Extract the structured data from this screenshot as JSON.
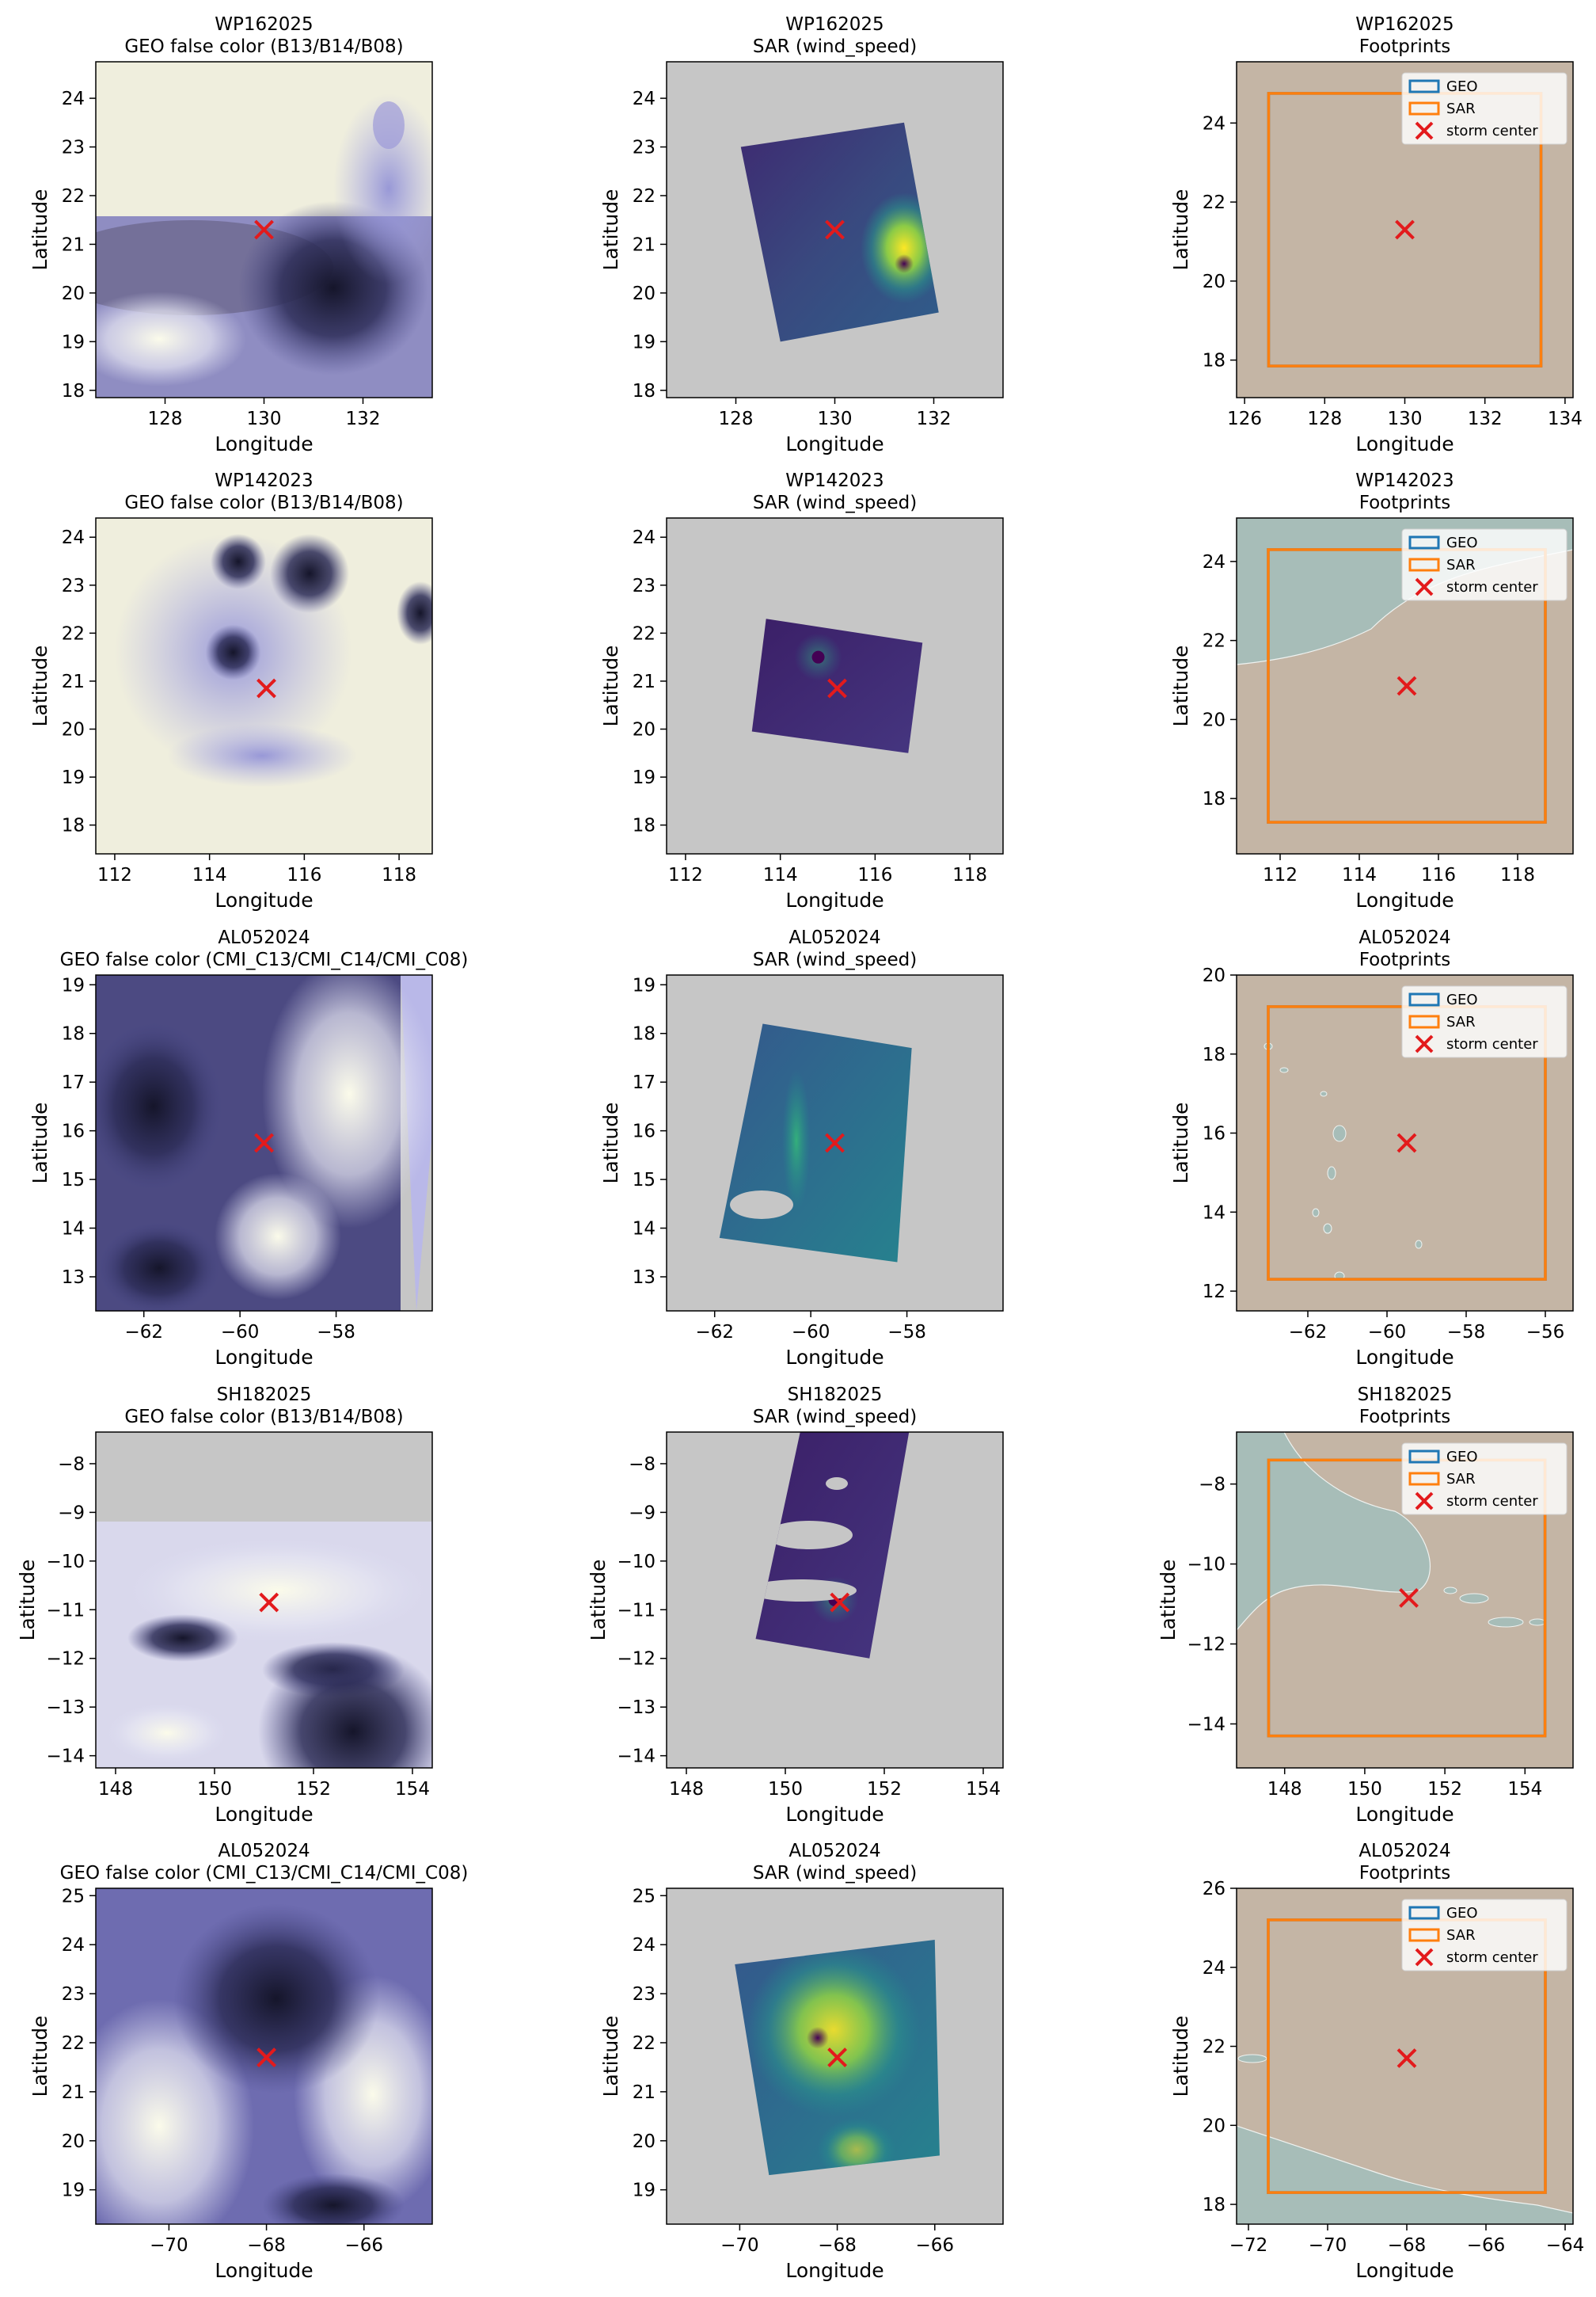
{
  "figure": {
    "background": "#ffffff",
    "marker_color": "#e31a1c",
    "geo_color": "#1f77b4",
    "sar_color": "#ff7f0e",
    "land_color": "#c4b5a5",
    "sea_color": "#a7bdb8",
    "nodata_color": "#c6c6c6"
  },
  "chart_data": [
    {
      "row": 0,
      "col": 0,
      "type": "image",
      "panel_kind": "geo",
      "title_line1": "WP162025",
      "title_line2": "GEO false color (B13/B14/B08)",
      "xlabel": "Longitude",
      "ylabel": "Latitude",
      "xlim": [
        126.6,
        133.4
      ],
      "ylim": [
        17.85,
        24.75
      ],
      "xticks": [
        128,
        130,
        132
      ],
      "yticks": [
        18,
        19,
        20,
        21,
        22,
        23,
        24
      ],
      "storm_center": [
        130.0,
        21.3
      ],
      "image_style": "bright",
      "eye": [
        131.4,
        20.1
      ]
    },
    {
      "row": 0,
      "col": 1,
      "type": "image",
      "panel_kind": "sar",
      "title_line1": "WP162025",
      "title_line2": "SAR (wind_speed)",
      "xlabel": "Longitude",
      "ylabel": "Latitude",
      "xlim": [
        126.6,
        133.4
      ],
      "ylim": [
        17.85,
        24.75
      ],
      "xticks": [
        128,
        130,
        132
      ],
      "yticks": [
        18,
        19,
        20,
        21,
        22,
        23,
        24
      ],
      "storm_center": [
        130.0,
        21.3
      ],
      "swath": [
        [
          128.1,
          23.0
        ],
        [
          131.4,
          23.5
        ],
        [
          132.1,
          19.6
        ],
        [
          128.9,
          19.0
        ]
      ],
      "sar_style": "mixed",
      "eye": [
        131.4,
        20.6
      ]
    },
    {
      "row": 0,
      "col": 2,
      "type": "footprint",
      "panel_kind": "footprints",
      "title_line1": "WP162025",
      "title_line2": "Footprints",
      "xlabel": "Longitude",
      "ylabel": "Latitude",
      "xlim": [
        125.8,
        134.2
      ],
      "ylim": [
        17.05,
        25.55
      ],
      "xticks": [
        126,
        128,
        130,
        132,
        134
      ],
      "yticks": [
        18,
        20,
        22,
        24
      ],
      "storm_center": [
        130.0,
        21.3
      ],
      "geo_box": [
        126.6,
        133.4,
        17.85,
        24.75
      ],
      "sar_box": [
        126.6,
        133.4,
        17.85,
        24.75
      ],
      "legend": [
        "GEO",
        "SAR",
        "storm center"
      ],
      "coast": "none"
    },
    {
      "row": 1,
      "col": 0,
      "type": "image",
      "panel_kind": "geo",
      "title_line1": "WP142023",
      "title_line2": "GEO false color (B13/B14/B08)",
      "xlabel": "Longitude",
      "ylabel": "Latitude",
      "xlim": [
        111.6,
        118.7
      ],
      "ylim": [
        17.4,
        24.4
      ],
      "xticks": [
        112,
        114,
        116,
        118
      ],
      "yticks": [
        18,
        19,
        20,
        21,
        22,
        23,
        24
      ],
      "storm_center": [
        115.2,
        20.85
      ],
      "image_style": "bright",
      "eye": [
        114.5,
        21.6
      ]
    },
    {
      "row": 1,
      "col": 1,
      "type": "image",
      "panel_kind": "sar",
      "title_line1": "WP142023",
      "title_line2": "SAR (wind_speed)",
      "xlabel": "Longitude",
      "ylabel": "Latitude",
      "xlim": [
        111.6,
        118.7
      ],
      "ylim": [
        17.4,
        24.4
      ],
      "xticks": [
        112,
        114,
        116,
        118
      ],
      "yticks": [
        18,
        19,
        20,
        21,
        22,
        23,
        24
      ],
      "storm_center": [
        115.2,
        20.85
      ],
      "swath": [
        [
          113.7,
          22.3
        ],
        [
          117.0,
          21.8
        ],
        [
          116.7,
          19.5
        ],
        [
          113.4,
          19.95
        ]
      ],
      "sar_style": "dark",
      "eye": [
        114.8,
        21.5
      ]
    },
    {
      "row": 1,
      "col": 2,
      "type": "footprint",
      "panel_kind": "footprints",
      "title_line1": "WP142023",
      "title_line2": "Footprints",
      "xlabel": "Longitude",
      "ylabel": "Latitude",
      "xlim": [
        110.9,
        119.4
      ],
      "ylim": [
        16.6,
        25.1
      ],
      "xticks": [
        112,
        114,
        116,
        118
      ],
      "yticks": [
        18,
        20,
        22,
        24
      ],
      "storm_center": [
        115.2,
        20.85
      ],
      "geo_box": [
        111.7,
        118.7,
        17.4,
        24.3
      ],
      "sar_box": [
        111.7,
        118.7,
        17.4,
        24.3
      ],
      "legend": [
        "GEO",
        "SAR",
        "storm center"
      ],
      "coast": "north"
    },
    {
      "row": 2,
      "col": 0,
      "type": "image",
      "panel_kind": "geo",
      "title_line1": "AL052024",
      "title_line2": "GEO false color (CMI_C13/CMI_C14/CMI_C08)",
      "xlabel": "Longitude",
      "ylabel": "Latitude",
      "xlim": [
        -63.0,
        -56.0
      ],
      "ylim": [
        12.3,
        19.2
      ],
      "xticks": [
        -62,
        -60,
        -58
      ],
      "yticks": [
        13,
        14,
        15,
        16,
        17,
        18,
        19
      ],
      "storm_center": [
        -59.5,
        15.75
      ],
      "image_style": "dark",
      "eye": [
        -61.8,
        16.5
      ]
    },
    {
      "row": 2,
      "col": 1,
      "type": "image",
      "panel_kind": "sar",
      "title_line1": "AL052024",
      "title_line2": "SAR (wind_speed)",
      "xlabel": "Longitude",
      "ylabel": "Latitude",
      "xlim": [
        -63.0,
        -56.0
      ],
      "ylim": [
        12.3,
        19.2
      ],
      "xticks": [
        -62,
        -60,
        -58
      ],
      "yticks": [
        13,
        14,
        15,
        16,
        17,
        18,
        19
      ],
      "storm_center": [
        -59.5,
        15.75
      ],
      "swath": [
        [
          -61.0,
          18.2
        ],
        [
          -57.9,
          17.7
        ],
        [
          -58.2,
          13.3
        ],
        [
          -61.9,
          13.8
        ]
      ],
      "sar_style": "streak",
      "eye": [
        -60.3,
        15.8
      ]
    },
    {
      "row": 2,
      "col": 2,
      "type": "footprint",
      "panel_kind": "footprints",
      "title_line1": "AL052024",
      "title_line2": "Footprints",
      "xlabel": "Longitude",
      "ylabel": "Latitude",
      "xlim": [
        -63.8,
        -55.3
      ],
      "ylim": [
        11.5,
        20.0
      ],
      "xticks": [
        -62,
        -60,
        -58,
        -56
      ],
      "yticks": [
        12,
        14,
        16,
        18,
        20
      ],
      "storm_center": [
        -59.5,
        15.75
      ],
      "geo_box": [
        -63.0,
        -56.0,
        12.3,
        19.2
      ],
      "sar_box": [
        -63.0,
        -56.0,
        12.3,
        19.2
      ],
      "legend": [
        "GEO",
        "SAR",
        "storm center"
      ],
      "coast": "islands"
    },
    {
      "row": 3,
      "col": 0,
      "type": "image",
      "panel_kind": "geo",
      "title_line1": "SH182025",
      "title_line2": "GEO false color (B13/B14/B08)",
      "xlabel": "Longitude",
      "ylabel": "Latitude",
      "xlim": [
        147.6,
        154.4
      ],
      "ylim": [
        -14.25,
        -7.35
      ],
      "xticks": [
        148,
        150,
        152,
        154
      ],
      "yticks": [
        -14,
        -13,
        -12,
        -11,
        -10,
        -9,
        -8
      ],
      "storm_center": [
        151.1,
        -10.85
      ],
      "image_style": "partial",
      "eye": [
        152.8,
        -13.5
      ]
    },
    {
      "row": 3,
      "col": 1,
      "type": "image",
      "panel_kind": "sar",
      "title_line1": "SH182025",
      "title_line2": "SAR (wind_speed)",
      "xlabel": "Longitude",
      "ylabel": "Latitude",
      "xlim": [
        147.6,
        154.4
      ],
      "ylim": [
        -14.25,
        -7.35
      ],
      "xticks": [
        148,
        150,
        152,
        154
      ],
      "yticks": [
        -14,
        -13,
        -12,
        -11,
        -10,
        -9,
        -8
      ],
      "storm_center": [
        151.1,
        -10.85
      ],
      "swath": [
        [
          150.3,
          -7.35
        ],
        [
          152.5,
          -7.35
        ],
        [
          151.7,
          -12.0
        ],
        [
          149.4,
          -11.6
        ]
      ],
      "sar_style": "dark",
      "eye": [
        151.0,
        -10.8
      ]
    },
    {
      "row": 3,
      "col": 2,
      "type": "footprint",
      "panel_kind": "footprints",
      "title_line1": "SH182025",
      "title_line2": "Footprints",
      "xlabel": "Longitude",
      "ylabel": "Latitude",
      "xlim": [
        146.8,
        155.2
      ],
      "ylim": [
        -15.1,
        -6.7
      ],
      "xticks": [
        148,
        150,
        152,
        154
      ],
      "yticks": [
        -14,
        -12,
        -10,
        -8
      ],
      "storm_center": [
        151.1,
        -10.85
      ],
      "geo_box": [
        147.6,
        154.5,
        -14.3,
        -7.4
      ],
      "sar_box": [
        147.6,
        154.5,
        -14.3,
        -7.4
      ],
      "legend": [
        "GEO",
        "SAR",
        "storm center"
      ],
      "coast": "png"
    },
    {
      "row": 4,
      "col": 0,
      "type": "image",
      "panel_kind": "geo",
      "title_line1": "AL052024",
      "title_line2": "GEO false color (CMI_C13/CMI_C14/CMI_C08)",
      "xlabel": "Longitude",
      "ylabel": "Latitude",
      "xlim": [
        -71.5,
        -64.6
      ],
      "ylim": [
        18.3,
        25.15
      ],
      "xticks": [
        -70,
        -68,
        -66
      ],
      "yticks": [
        19,
        20,
        21,
        22,
        23,
        24,
        25
      ],
      "storm_center": [
        -68.0,
        21.7
      ],
      "image_style": "hurricane",
      "eye": [
        -67.8,
        22.9
      ]
    },
    {
      "row": 4,
      "col": 1,
      "type": "image",
      "panel_kind": "sar",
      "title_line1": "AL052024",
      "title_line2": "SAR (wind_speed)",
      "xlabel": "Longitude",
      "ylabel": "Latitude",
      "xlim": [
        -71.5,
        -64.6
      ],
      "ylim": [
        18.3,
        25.15
      ],
      "xticks": [
        -70,
        -68,
        -66
      ],
      "yticks": [
        19,
        20,
        21,
        22,
        23,
        24,
        25
      ],
      "storm_center": [
        -68.0,
        21.7
      ],
      "swath": [
        [
          -70.1,
          23.6
        ],
        [
          -66.0,
          24.1
        ],
        [
          -65.9,
          19.7
        ],
        [
          -69.4,
          19.3
        ]
      ],
      "sar_style": "bright",
      "eye": [
        -68.4,
        22.1
      ]
    },
    {
      "row": 4,
      "col": 2,
      "type": "footprint",
      "panel_kind": "footprints",
      "title_line1": "AL052024",
      "title_line2": "Footprints",
      "xlabel": "Longitude",
      "ylabel": "Latitude",
      "xlim": [
        -72.3,
        -63.8
      ],
      "ylim": [
        17.5,
        26.0
      ],
      "xticks": [
        -72,
        -70,
        -68,
        -66,
        -64
      ],
      "yticks": [
        18,
        20,
        22,
        24,
        26
      ],
      "storm_center": [
        -68.0,
        21.7
      ],
      "geo_box": [
        -71.5,
        -64.5,
        18.3,
        25.2
      ],
      "sar_box": [
        -71.5,
        -64.5,
        18.3,
        25.2
      ],
      "legend": [
        "GEO",
        "SAR",
        "storm center"
      ],
      "coast": "caribbean"
    }
  ]
}
